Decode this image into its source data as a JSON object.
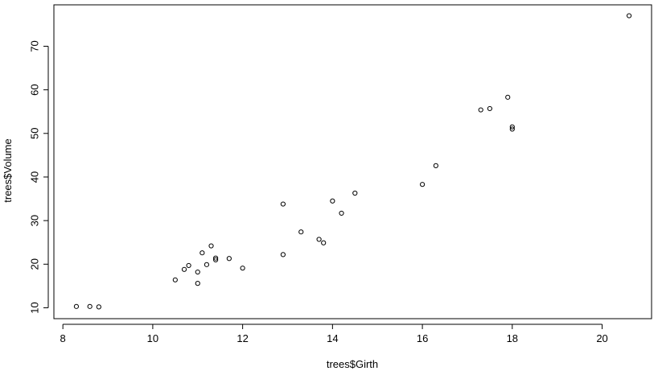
{
  "chart_data": {
    "type": "scatter",
    "title": "",
    "xlabel": "trees$Girth",
    "ylabel": "trees$Volume",
    "xlim": [
      7.8,
      21.1
    ],
    "ylim": [
      7.5,
      79.5
    ],
    "xticks": [
      8,
      10,
      12,
      14,
      16,
      18,
      20
    ],
    "yticks": [
      10,
      20,
      30,
      40,
      50,
      60,
      70
    ],
    "grid": false,
    "legend": "none",
    "marker": "open-circle",
    "colors": {
      "points": "#000000",
      "frame": "#000000",
      "background": "#ffffff"
    },
    "series": [
      {
        "x": [
          8.3,
          8.6,
          8.8,
          10.5,
          10.7,
          10.8,
          11.0,
          11.0,
          11.1,
          11.2,
          11.3,
          11.4,
          11.4,
          11.7,
          12.0,
          12.9,
          12.9,
          13.3,
          13.7,
          13.8,
          14.0,
          14.2,
          14.5,
          16.0,
          16.3,
          17.3,
          17.5,
          17.9,
          18.0,
          18.0,
          20.6
        ],
        "y": [
          10.3,
          10.3,
          10.2,
          16.4,
          18.8,
          19.7,
          15.6,
          18.2,
          22.6,
          19.9,
          24.2,
          21.0,
          21.4,
          21.3,
          19.1,
          22.2,
          33.8,
          27.4,
          25.7,
          24.9,
          34.5,
          31.7,
          36.3,
          38.3,
          42.6,
          55.4,
          55.7,
          58.3,
          51.5,
          51.0,
          77.0
        ]
      }
    ]
  }
}
